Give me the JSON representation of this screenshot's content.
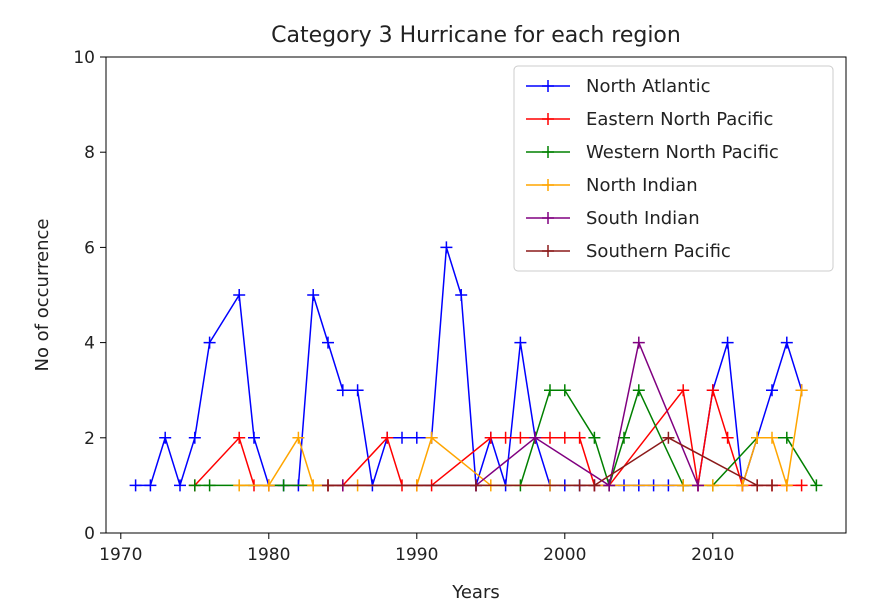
{
  "chart_data": {
    "type": "line",
    "title": "Category 3 Hurricane for each region",
    "xlabel": "Years",
    "ylabel": "No of occurrence",
    "xlim": [
      1969,
      2019
    ],
    "ylim": [
      0,
      10
    ],
    "xticks": [
      1970,
      1980,
      1990,
      2000,
      2010
    ],
    "yticks": [
      0,
      2,
      4,
      6,
      8,
      10
    ],
    "grid": false,
    "legend_position": "top-right",
    "marker": "+",
    "series": [
      {
        "name": "North Atlantic",
        "color": "#0000ff",
        "x": [
          1971,
          1972,
          1973,
          1974,
          1975,
          1976,
          1978,
          1979,
          1980,
          1981,
          1982,
          1983,
          1984,
          1985,
          1986,
          1987,
          1988,
          1989,
          1990,
          1991,
          1992,
          1993,
          1994,
          1995,
          1996,
          1997,
          1998,
          1999,
          2000,
          2001,
          2002,
          2003,
          2004,
          2005,
          2006,
          2007,
          2008,
          2009,
          2010,
          2011,
          2012,
          2013,
          2014,
          2015,
          2016
        ],
        "y": [
          1,
          1,
          2,
          1,
          2,
          4,
          5,
          2,
          1,
          1,
          1,
          5,
          4,
          3,
          3,
          1,
          2,
          2,
          2,
          2,
          6,
          5,
          1,
          2,
          1,
          4,
          2,
          1,
          1,
          1,
          1,
          1,
          1,
          1,
          1,
          1,
          1,
          1,
          3,
          4,
          1,
          2,
          3,
          4,
          3
        ]
      },
      {
        "name": "Eastern North Pacific",
        "color": "#ff0000",
        "x": [
          1975,
          1978,
          1979,
          1980,
          1984,
          1985,
          1988,
          1989,
          1990,
          1991,
          1995,
          1996,
          1997,
          1998,
          1999,
          2000,
          2001,
          2002,
          2003,
          2008,
          2009,
          2010,
          2011,
          2012,
          2013,
          2014,
          2015,
          2016
        ],
        "y": [
          1,
          2,
          1,
          1,
          1,
          1,
          2,
          1,
          1,
          1,
          2,
          2,
          2,
          2,
          2,
          2,
          2,
          1,
          1,
          3,
          1,
          3,
          2,
          1,
          1,
          1,
          1,
          1
        ]
      },
      {
        "name": "Western North Pacific",
        "color": "#008000",
        "x": [
          1975,
          1976,
          1981,
          1997,
          1999,
          2000,
          2002,
          2003,
          2004,
          2005,
          2008,
          2010,
          2013,
          2015,
          2017
        ],
        "y": [
          1,
          1,
          1,
          1,
          3,
          3,
          2,
          1,
          2,
          3,
          1,
          1,
          2,
          2,
          1
        ]
      },
      {
        "name": "North Indian",
        "color": "#ffa500",
        "x": [
          1978,
          1980,
          1982,
          1983,
          1984,
          1986,
          1990,
          1991,
          1995,
          1999,
          2008,
          2010,
          2012,
          2013,
          2014,
          2015,
          2016
        ],
        "y": [
          1,
          1,
          2,
          1,
          1,
          1,
          1,
          2,
          1,
          1,
          1,
          1,
          1,
          2,
          2,
          1,
          3
        ]
      },
      {
        "name": "South Indian",
        "color": "#800080",
        "x": [
          1984,
          1985,
          1994,
          1998,
          2003,
          2005,
          2009
        ],
        "y": [
          1,
          1,
          1,
          2,
          1,
          4,
          1
        ]
      },
      {
        "name": "Southern Pacific",
        "color": "#8b1a1a",
        "x": [
          1984,
          1994,
          2001,
          2002,
          2007,
          2013,
          2014
        ],
        "y": [
          1,
          1,
          1,
          1,
          2,
          1,
          1
        ]
      }
    ]
  }
}
